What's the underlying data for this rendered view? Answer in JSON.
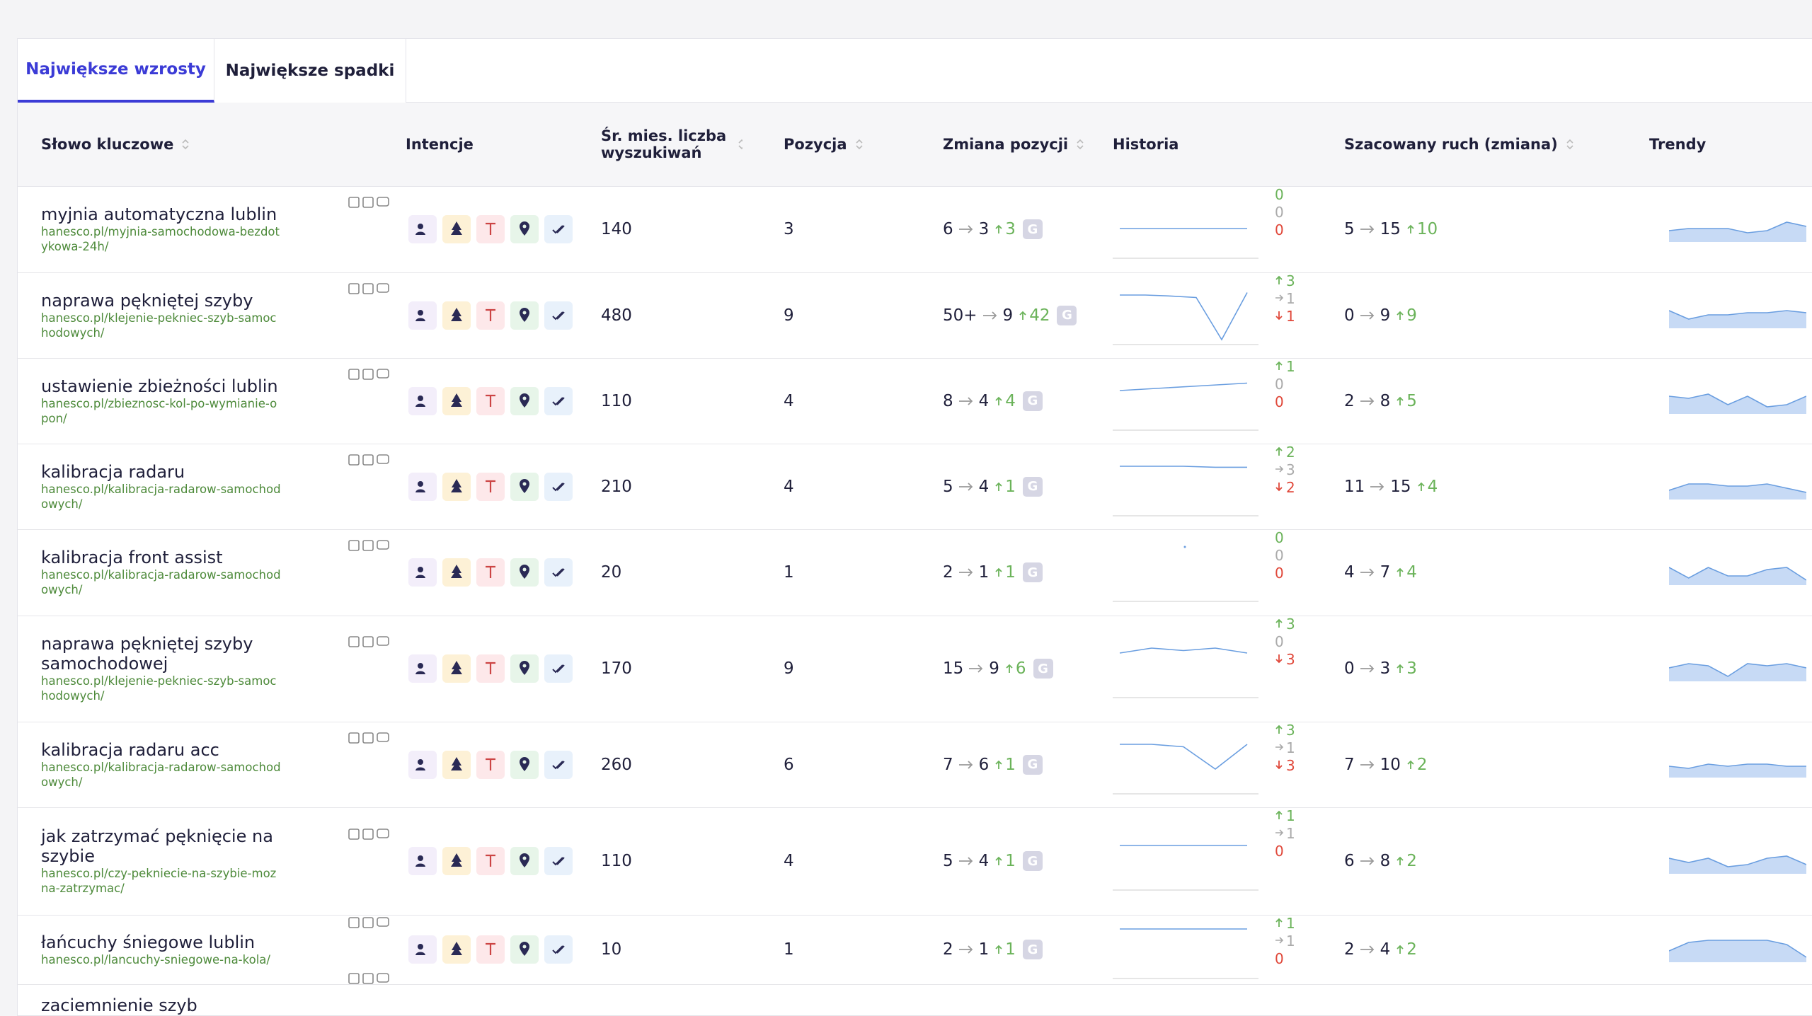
{
  "tabs": [
    "Największe wzrosty",
    "Największe spadki"
  ],
  "columns": [
    "Słowo kluczowe",
    "Intencje",
    "Śr. mies. liczba wyszukiwań",
    "Pozycja",
    "Zmiana pozycji",
    "Historia",
    "Szacowany ruch (zmiana)",
    "Trendy"
  ],
  "google_badge": "G",
  "rows": [
    {
      "keyword": "myjnia automatyczna lublin",
      "url": "hanesco.pl/myjnia-samochodowa-bezdotykowa-24h/",
      "volume": "140",
      "position": "3",
      "change": {
        "from": "6",
        "to": "3",
        "delta": "3"
      },
      "history": {
        "up": "0",
        "same": "0",
        "down": "0"
      },
      "traffic": {
        "from": "5",
        "to": "15",
        "delta": "10"
      }
    },
    {
      "keyword": "naprawa pękniętej szyby",
      "url": "hanesco.pl/klejenie-pekniec-szyb-samochodowych/",
      "volume": "480",
      "position": "9",
      "change": {
        "from": "50+",
        "to": "9",
        "delta": "42"
      },
      "history": {
        "up": "3",
        "same": "1",
        "down": "1"
      },
      "traffic": {
        "from": "0",
        "to": "9",
        "delta": "9"
      }
    },
    {
      "keyword": "ustawienie zbieżności lublin",
      "url": "hanesco.pl/zbieznosc-kol-po-wymianie-opon/",
      "volume": "110",
      "position": "4",
      "change": {
        "from": "8",
        "to": "4",
        "delta": "4"
      },
      "history": {
        "up": "1",
        "same": "0",
        "down": "0"
      },
      "traffic": {
        "from": "2",
        "to": "8",
        "delta": "5"
      }
    },
    {
      "keyword": "kalibracja radaru",
      "url": "hanesco.pl/kalibracja-radarow-samochodowych/",
      "volume": "210",
      "position": "4",
      "change": {
        "from": "5",
        "to": "4",
        "delta": "1"
      },
      "history": {
        "up": "2",
        "same": "3",
        "down": "2"
      },
      "traffic": {
        "from": "11",
        "to": "15",
        "delta": "4"
      }
    },
    {
      "keyword": "kalibracja front assist",
      "url": "hanesco.pl/kalibracja-radarow-samochodowych/",
      "volume": "20",
      "position": "1",
      "change": {
        "from": "2",
        "to": "1",
        "delta": "1"
      },
      "history": {
        "up": "0",
        "same": "0",
        "down": "0"
      },
      "traffic": {
        "from": "4",
        "to": "7",
        "delta": "4"
      }
    },
    {
      "keyword": "naprawa pękniętej szyby samochodowej",
      "url": "hanesco.pl/klejenie-pekniec-szyb-samochodowych/",
      "volume": "170",
      "position": "9",
      "change": {
        "from": "15",
        "to": "9",
        "delta": "6"
      },
      "history": {
        "up": "3",
        "same": "0",
        "down": "3"
      },
      "traffic": {
        "from": "0",
        "to": "3",
        "delta": "3"
      }
    },
    {
      "keyword": "kalibracja radaru acc",
      "url": "hanesco.pl/kalibracja-radarow-samochodowych/",
      "volume": "260",
      "position": "6",
      "change": {
        "from": "7",
        "to": "6",
        "delta": "1"
      },
      "history": {
        "up": "3",
        "same": "1",
        "down": "3"
      },
      "traffic": {
        "from": "7",
        "to": "10",
        "delta": "2"
      }
    },
    {
      "keyword": "jak zatrzymać pęknięcie na szybie",
      "url": "hanesco.pl/czy-pekniecie-na-szybie-mozna-zatrzymac/",
      "volume": "110",
      "position": "4",
      "change": {
        "from": "5",
        "to": "4",
        "delta": "1"
      },
      "history": {
        "up": "1",
        "same": "1",
        "down": "0"
      },
      "traffic": {
        "from": "6",
        "to": "8",
        "delta": "2"
      }
    },
    {
      "keyword": "łańcuchy śniegowe lublin",
      "url": "hanesco.pl/lancuchy-sniegowe-na-kola/",
      "volume": "10",
      "position": "1",
      "change": {
        "from": "2",
        "to": "1",
        "delta": "1"
      },
      "history": {
        "up": "1",
        "same": "1",
        "down": "0"
      },
      "traffic": {
        "from": "2",
        "to": "4",
        "delta": "2"
      }
    },
    {
      "keyword": "zaciemnienie szyb"
    }
  ]
}
